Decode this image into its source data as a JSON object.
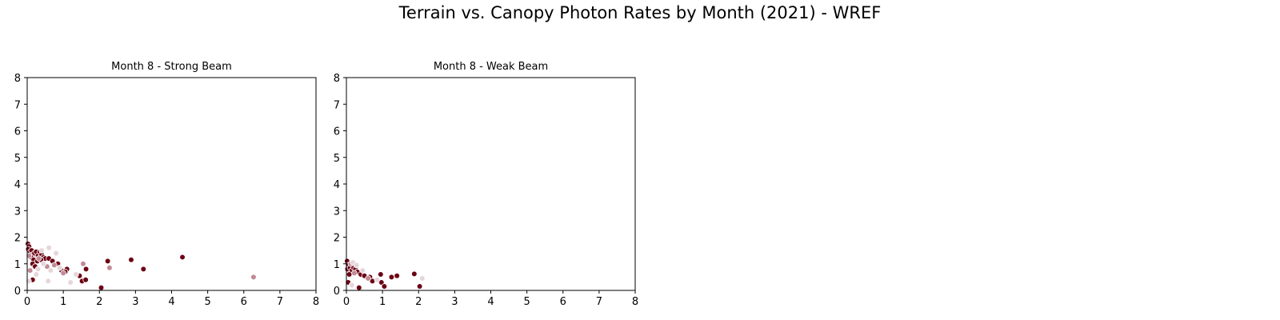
{
  "figure": {
    "title": "Terrain vs. Canopy Photon Rates by Month (2021) - WREF"
  },
  "colors": {
    "dark": "#6b0013",
    "mid": "#c08a96",
    "light": "#e6d6d9"
  },
  "chart_data": [
    {
      "type": "scatter",
      "title": "Month 8 - Strong Beam",
      "xlabel": "",
      "ylabel": "",
      "xlim": [
        0,
        8
      ],
      "ylim": [
        0,
        8
      ],
      "xticks": [
        "0",
        "1",
        "2",
        "3",
        "4",
        "5",
        "6",
        "7",
        "8"
      ],
      "yticks": [
        "0",
        "1",
        "2",
        "3",
        "4",
        "5",
        "6",
        "7",
        "8"
      ],
      "grid": false,
      "points": [
        {
          "x": 0.02,
          "y": 1.75,
          "c": "dark"
        },
        {
          "x": 0.05,
          "y": 1.65,
          "c": "dark"
        },
        {
          "x": 0.03,
          "y": 1.55,
          "c": "dark"
        },
        {
          "x": 0.08,
          "y": 1.45,
          "c": "dark"
        },
        {
          "x": 0.12,
          "y": 1.5,
          "c": "dark"
        },
        {
          "x": 0.15,
          "y": 1.35,
          "c": "dark"
        },
        {
          "x": 0.2,
          "y": 1.4,
          "c": "dark"
        },
        {
          "x": 0.25,
          "y": 1.45,
          "c": "dark"
        },
        {
          "x": 0.3,
          "y": 1.3,
          "c": "dark"
        },
        {
          "x": 0.35,
          "y": 1.45,
          "c": "dark"
        },
        {
          "x": 0.4,
          "y": 1.35,
          "c": "dark"
        },
        {
          "x": 0.45,
          "y": 1.25,
          "c": "dark"
        },
        {
          "x": 0.5,
          "y": 1.2,
          "c": "dark"
        },
        {
          "x": 0.1,
          "y": 1.25,
          "c": "dark"
        },
        {
          "x": 0.18,
          "y": 1.15,
          "c": "dark"
        },
        {
          "x": 0.28,
          "y": 1.1,
          "c": "dark"
        },
        {
          "x": 0.38,
          "y": 1.15,
          "c": "dark"
        },
        {
          "x": 0.15,
          "y": 1.0,
          "c": "dark"
        },
        {
          "x": 0.22,
          "y": 0.9,
          "c": "dark"
        },
        {
          "x": 0.6,
          "y": 1.2,
          "c": "dark"
        },
        {
          "x": 0.7,
          "y": 1.1,
          "c": "dark"
        },
        {
          "x": 0.85,
          "y": 1.0,
          "c": "dark"
        },
        {
          "x": 0.95,
          "y": 0.75,
          "c": "dark"
        },
        {
          "x": 1.1,
          "y": 0.8,
          "c": "dark"
        },
        {
          "x": 1.05,
          "y": 0.7,
          "c": "dark"
        },
        {
          "x": 0.15,
          "y": 0.4,
          "c": "dark"
        },
        {
          "x": 1.45,
          "y": 0.55,
          "c": "dark"
        },
        {
          "x": 1.52,
          "y": 0.35,
          "c": "dark"
        },
        {
          "x": 1.62,
          "y": 0.4,
          "c": "dark"
        },
        {
          "x": 1.63,
          "y": 0.8,
          "c": "dark"
        },
        {
          "x": 2.05,
          "y": 0.1,
          "c": "dark"
        },
        {
          "x": 2.23,
          "y": 1.1,
          "c": "dark"
        },
        {
          "x": 2.88,
          "y": 1.15,
          "c": "dark"
        },
        {
          "x": 3.22,
          "y": 0.8,
          "c": "dark"
        },
        {
          "x": 4.3,
          "y": 1.25,
          "c": "dark"
        },
        {
          "x": 0.05,
          "y": 1.3,
          "c": "mid"
        },
        {
          "x": 0.32,
          "y": 1.2,
          "c": "mid"
        },
        {
          "x": 0.55,
          "y": 0.9,
          "c": "mid"
        },
        {
          "x": 0.75,
          "y": 0.95,
          "c": "mid"
        },
        {
          "x": 1.0,
          "y": 0.65,
          "c": "mid"
        },
        {
          "x": 1.55,
          "y": 1.0,
          "c": "mid"
        },
        {
          "x": 2.28,
          "y": 0.85,
          "c": "mid"
        },
        {
          "x": 6.27,
          "y": 0.5,
          "c": "mid"
        },
        {
          "x": 0.08,
          "y": 0.75,
          "c": "mid"
        },
        {
          "x": 0.3,
          "y": 0.8,
          "c": "light"
        },
        {
          "x": 0.6,
          "y": 1.6,
          "c": "light"
        },
        {
          "x": 0.8,
          "y": 1.4,
          "c": "light"
        },
        {
          "x": 0.45,
          "y": 1.0,
          "c": "light"
        },
        {
          "x": 0.25,
          "y": 0.6,
          "c": "light"
        },
        {
          "x": 0.58,
          "y": 0.35,
          "c": "light"
        },
        {
          "x": 1.2,
          "y": 0.3,
          "c": "light"
        },
        {
          "x": 1.35,
          "y": 0.6,
          "c": "light"
        },
        {
          "x": 0.9,
          "y": 0.85,
          "c": "light"
        },
        {
          "x": 0.65,
          "y": 0.75,
          "c": "light"
        },
        {
          "x": 0.04,
          "y": 0.35,
          "c": "light"
        },
        {
          "x": 0.4,
          "y": 1.5,
          "c": "light"
        }
      ]
    },
    {
      "type": "scatter",
      "title": "Month 8 - Weak Beam",
      "xlabel": "",
      "ylabel": "",
      "xlim": [
        0,
        8
      ],
      "ylim": [
        0,
        8
      ],
      "xticks": [
        "0",
        "1",
        "2",
        "3",
        "4",
        "5",
        "6",
        "7",
        "8"
      ],
      "yticks": [
        "0",
        "1",
        "2",
        "3",
        "4",
        "5",
        "6",
        "7",
        "8"
      ],
      "grid": false,
      "points": [
        {
          "x": 0.02,
          "y": 1.1,
          "c": "dark"
        },
        {
          "x": 0.05,
          "y": 0.95,
          "c": "dark"
        },
        {
          "x": 0.03,
          "y": 0.8,
          "c": "dark"
        },
        {
          "x": 0.1,
          "y": 0.85,
          "c": "dark"
        },
        {
          "x": 0.15,
          "y": 0.75,
          "c": "dark"
        },
        {
          "x": 0.2,
          "y": 0.85,
          "c": "dark"
        },
        {
          "x": 0.25,
          "y": 0.8,
          "c": "dark"
        },
        {
          "x": 0.3,
          "y": 0.7,
          "c": "dark"
        },
        {
          "x": 0.08,
          "y": 0.6,
          "c": "dark"
        },
        {
          "x": 0.4,
          "y": 0.6,
          "c": "dark"
        },
        {
          "x": 0.5,
          "y": 0.55,
          "c": "dark"
        },
        {
          "x": 0.65,
          "y": 0.5,
          "c": "dark"
        },
        {
          "x": 0.72,
          "y": 0.35,
          "c": "dark"
        },
        {
          "x": 0.05,
          "y": 0.3,
          "c": "dark"
        },
        {
          "x": 0.35,
          "y": 0.1,
          "c": "dark"
        },
        {
          "x": 0.95,
          "y": 0.6,
          "c": "dark"
        },
        {
          "x": 0.97,
          "y": 0.3,
          "c": "dark"
        },
        {
          "x": 1.05,
          "y": 0.15,
          "c": "dark"
        },
        {
          "x": 1.25,
          "y": 0.5,
          "c": "dark"
        },
        {
          "x": 1.4,
          "y": 0.55,
          "c": "dark"
        },
        {
          "x": 1.88,
          "y": 0.62,
          "c": "dark"
        },
        {
          "x": 2.03,
          "y": 0.15,
          "c": "dark"
        },
        {
          "x": 0.12,
          "y": 1.0,
          "c": "mid"
        },
        {
          "x": 0.22,
          "y": 0.65,
          "c": "mid"
        },
        {
          "x": 0.6,
          "y": 0.45,
          "c": "mid"
        },
        {
          "x": 0.18,
          "y": 1.05,
          "c": "light"
        },
        {
          "x": 0.28,
          "y": 0.95,
          "c": "light"
        },
        {
          "x": 0.45,
          "y": 0.75,
          "c": "light"
        },
        {
          "x": 0.15,
          "y": 0.2,
          "c": "light"
        },
        {
          "x": 2.1,
          "y": 0.45,
          "c": "light"
        },
        {
          "x": 0.85,
          "y": 0.4,
          "c": "light"
        }
      ]
    }
  ]
}
